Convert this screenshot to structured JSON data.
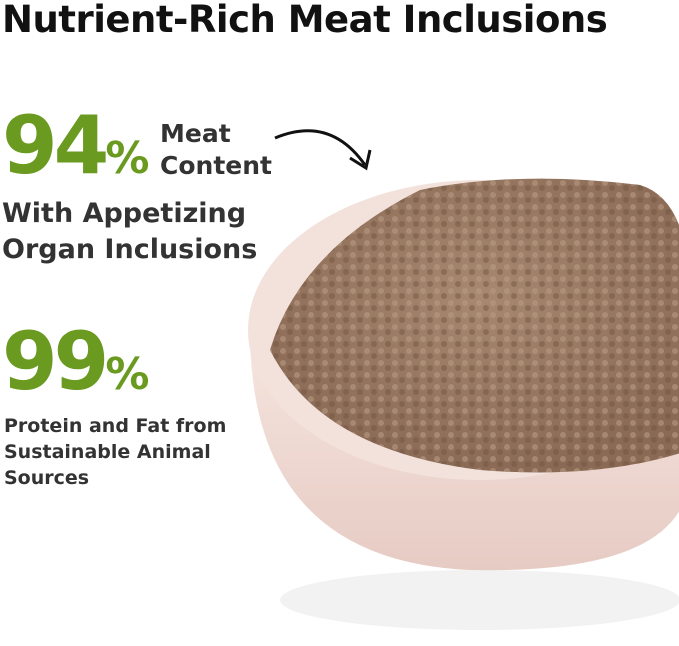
{
  "heading": "Nutrient-Rich Meat Inclusions",
  "stat1": {
    "number": "94",
    "unit": "%",
    "label_line1": "Meat",
    "label_line2": "Content",
    "sub_line1": "With Appetizing",
    "sub_line2": "Organ Inclusions"
  },
  "stat2": {
    "number": "99",
    "unit": "%",
    "line1": "Protein and Fat from",
    "line2": "Sustainable Animal",
    "line3": "Sources"
  },
  "colors": {
    "accent": "#6a9a1f",
    "text": "#333333",
    "bowl": "#f0ddd6",
    "meat": "#9b7a64"
  }
}
